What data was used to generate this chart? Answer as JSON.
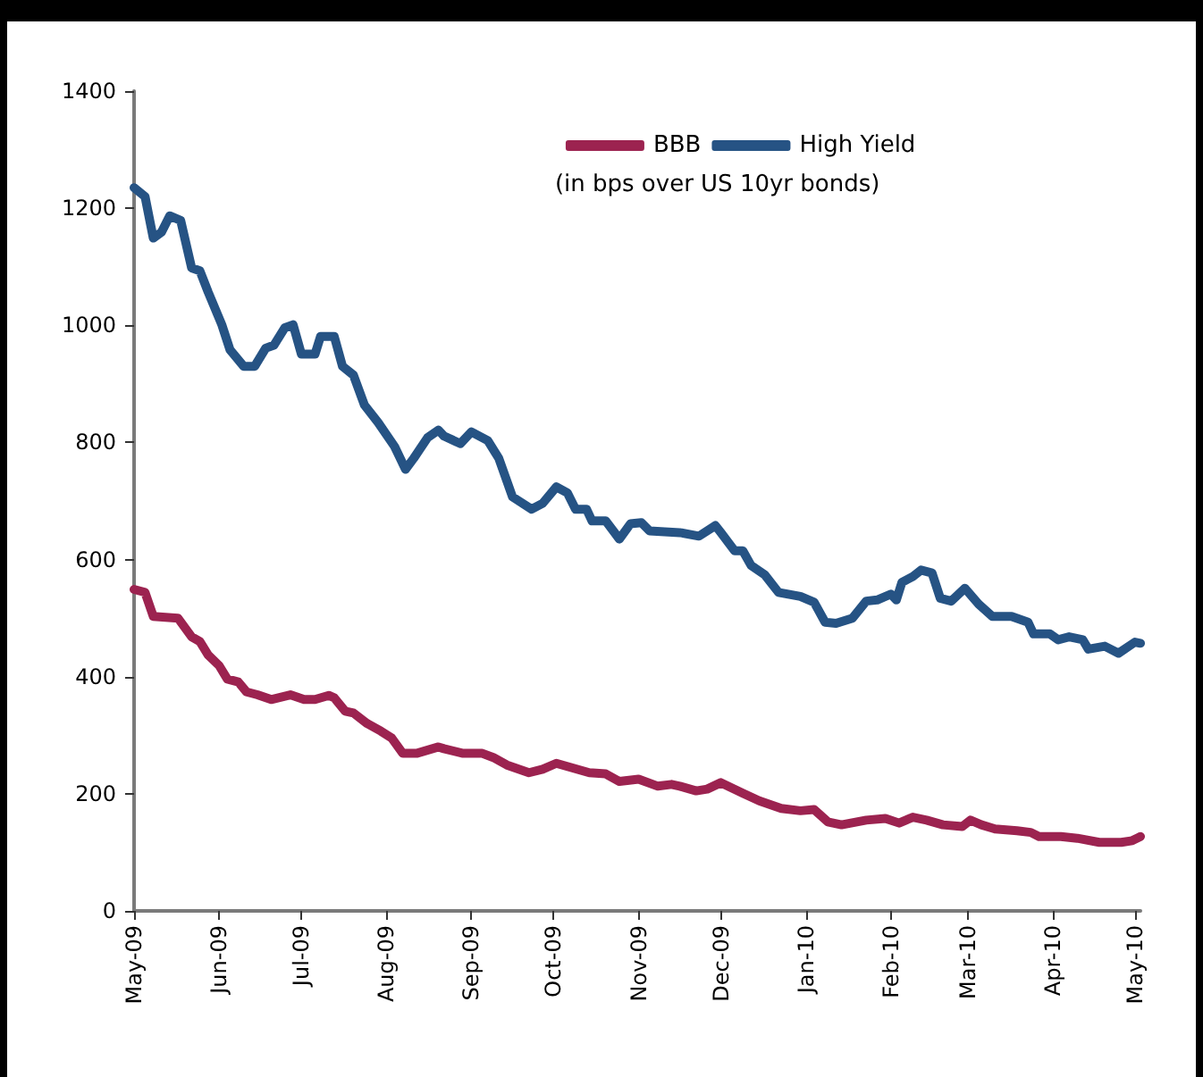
{
  "chart_data": {
    "type": "line",
    "xlim": [
      "2009-05-01",
      "2010-05-03"
    ],
    "xticks": [
      {
        "value": "2009-05-01",
        "label": "May-09"
      },
      {
        "value": "2009-06-01",
        "label": "Jun-09"
      },
      {
        "value": "2009-07-01",
        "label": "Jul-09"
      },
      {
        "value": "2009-08-01",
        "label": "Aug-09"
      },
      {
        "value": "2009-09-01",
        "label": "Sep-09"
      },
      {
        "value": "2009-10-01",
        "label": "Oct-09"
      },
      {
        "value": "2009-11-01",
        "label": "Nov-09"
      },
      {
        "value": "2009-12-01",
        "label": "Dec-09"
      },
      {
        "value": "2010-01-01",
        "label": "Jan-10"
      },
      {
        "value": "2010-02-01",
        "label": "Feb-10"
      },
      {
        "value": "2010-03-01",
        "label": "Mar-10"
      },
      {
        "value": "2010-04-01",
        "label": "Apr-10"
      },
      {
        "value": "2010-05-01",
        "label": "May-10"
      }
    ],
    "ylim": [
      0,
      1400
    ],
    "yticks": [
      0,
      200,
      400,
      600,
      800,
      1000,
      1200,
      1400
    ],
    "grid": false,
    "legend": "top",
    "marker": "none",
    "line_style": "solid",
    "annotations": [
      "(in bps over US 10yr bonds)"
    ],
    "series": [
      {
        "name": "BBB",
        "color": "#9c2350",
        "x": [
          "2009-05-01",
          "2009-05-05",
          "2009-05-08",
          "2009-05-17",
          "2009-05-22",
          "2009-05-25",
          "2009-05-28",
          "2009-06-01",
          "2009-06-04",
          "2009-06-08",
          "2009-06-11",
          "2009-06-15",
          "2009-06-20",
          "2009-06-27",
          "2009-07-02",
          "2009-07-06",
          "2009-07-11",
          "2009-07-13",
          "2009-07-17",
          "2009-07-20",
          "2009-07-25",
          "2009-07-30",
          "2009-08-03",
          "2009-08-07",
          "2009-08-12",
          "2009-08-20",
          "2009-08-22",
          "2009-08-29",
          "2009-09-05",
          "2009-09-09",
          "2009-09-14",
          "2009-09-22",
          "2009-09-27",
          "2009-10-02",
          "2009-10-08",
          "2009-10-14",
          "2009-10-20",
          "2009-10-25",
          "2009-11-01",
          "2009-11-08",
          "2009-11-13",
          "2009-11-16",
          "2009-11-22",
          "2009-11-26",
          "2009-12-01",
          "2009-12-09",
          "2009-12-15",
          "2009-12-23",
          "2009-12-30",
          "2010-01-04",
          "2010-01-09",
          "2010-01-14",
          "2010-01-23",
          "2010-01-30",
          "2010-02-04",
          "2010-02-09",
          "2010-02-14",
          "2010-02-20",
          "2010-02-27",
          "2010-03-02",
          "2010-03-06",
          "2010-03-11",
          "2010-03-19",
          "2010-03-24",
          "2010-03-27",
          "2010-04-04",
          "2010-04-10",
          "2010-04-18",
          "2010-04-26",
          "2010-04-30",
          "2010-05-03"
        ],
        "values": [
          549,
          544,
          503,
          500,
          468,
          460,
          437,
          419,
          396,
          391,
          374,
          369,
          361,
          369,
          361,
          361,
          368,
          364,
          341,
          338,
          320,
          307,
          295,
          269,
          269,
          280,
          277,
          269,
          269,
          262,
          249,
          236,
          242,
          252,
          244,
          236,
          234,
          221,
          225,
          213,
          216,
          213,
          205,
          208,
          219,
          201,
          188,
          175,
          171,
          173,
          152,
          147,
          155,
          158,
          150,
          160,
          155,
          147,
          144,
          155,
          147,
          140,
          137,
          134,
          127,
          127,
          124,
          117,
          117,
          120,
          127
        ]
      },
      {
        "name": "High Yield",
        "color": "#265384",
        "x": [
          "2009-05-01",
          "2009-05-05",
          "2009-05-08",
          "2009-05-11",
          "2009-05-14",
          "2009-05-18",
          "2009-05-22",
          "2009-05-25",
          "2009-05-28",
          "2009-06-02",
          "2009-06-05",
          "2009-06-10",
          "2009-06-14",
          "2009-06-18",
          "2009-06-21",
          "2009-06-25",
          "2009-06-28",
          "2009-07-01",
          "2009-07-06",
          "2009-07-08",
          "2009-07-13",
          "2009-07-16",
          "2009-07-20",
          "2009-07-24",
          "2009-07-29",
          "2009-08-04",
          "2009-08-08",
          "2009-08-11",
          "2009-08-16",
          "2009-08-20",
          "2009-08-22",
          "2009-08-28",
          "2009-09-01",
          "2009-09-07",
          "2009-09-11",
          "2009-09-16",
          "2009-09-23",
          "2009-09-27",
          "2009-10-02",
          "2009-10-06",
          "2009-10-09",
          "2009-10-13",
          "2009-10-15",
          "2009-10-20",
          "2009-10-25",
          "2009-10-29",
          "2009-11-02",
          "2009-11-05",
          "2009-11-16",
          "2009-11-23",
          "2009-11-29",
          "2009-12-01",
          "2009-12-06",
          "2009-12-09",
          "2009-12-12",
          "2009-12-17",
          "2009-12-22",
          "2009-12-30",
          "2010-01-04",
          "2010-01-08",
          "2010-01-12",
          "2010-01-18",
          "2010-01-23",
          "2010-01-27",
          "2010-02-01",
          "2010-02-03",
          "2010-02-05",
          "2010-02-09",
          "2010-02-12",
          "2010-02-16",
          "2010-02-19",
          "2010-02-23",
          "2010-02-28",
          "2010-03-05",
          "2010-03-10",
          "2010-03-17",
          "2010-03-20",
          "2010-03-23",
          "2010-03-25",
          "2010-03-31",
          "2010-04-03",
          "2010-04-07",
          "2010-04-12",
          "2010-04-14",
          "2010-04-20",
          "2010-04-25",
          "2010-05-01",
          "2010-05-03"
        ],
        "values": [
          1235,
          1220,
          1149,
          1159,
          1187,
          1179,
          1098,
          1093,
          1057,
          1001,
          958,
          930,
          930,
          961,
          966,
          996,
          1001,
          951,
          951,
          981,
          981,
          930,
          915,
          864,
          834,
          793,
          754,
          773,
          808,
          821,
          811,
          798,
          818,
          803,
          773,
          707,
          686,
          696,
          724,
          714,
          686,
          686,
          666,
          666,
          635,
          661,
          663,
          649,
          646,
          640,
          658,
          646,
          615,
          615,
          590,
          574,
          544,
          537,
          527,
          493,
          491,
          500,
          529,
          531,
          541,
          531,
          561,
          571,
          582,
          577,
          534,
          529,
          551,
          524,
          503,
          503,
          498,
          493,
          473,
          473,
          463,
          468,
          463,
          447,
          452,
          440,
          459,
          457
        ]
      }
    ]
  }
}
